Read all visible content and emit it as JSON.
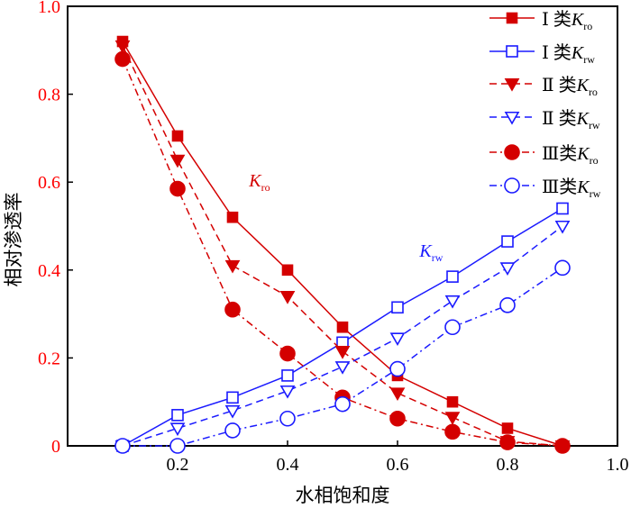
{
  "chart_data": {
    "type": "line",
    "title": "",
    "xlabel": "水相饱和度",
    "ylabel": "相对渗透率",
    "xlim": [
      0,
      1.0
    ],
    "ylim": [
      0,
      1.0
    ],
    "xticks": [
      "0.2",
      "0.4",
      "0.6",
      "0.8",
      "1.0"
    ],
    "xtick_values": [
      0.2,
      0.4,
      0.6,
      0.8,
      1.0
    ],
    "yticks": [
      "0",
      "0.2",
      "0.4",
      "0.6",
      "0.8",
      "1.0"
    ],
    "ytick_values": [
      0,
      0.2,
      0.4,
      0.6,
      0.8,
      1.0
    ],
    "ytick_color": "#ff0000",
    "grid": false,
    "legend_position": "top-right",
    "x": [
      0.1,
      0.2,
      0.3,
      0.4,
      0.5,
      0.6,
      0.7,
      0.8,
      0.9
    ],
    "series": [
      {
        "name": "Ⅰ 类K_ro",
        "prefix": "Ⅰ 类",
        "k": "K",
        "sub": "ro",
        "color": "#d40000",
        "dash": "solid",
        "marker": "square-filled",
        "values": [
          0.92,
          0.705,
          0.52,
          0.4,
          0.27,
          0.16,
          0.1,
          0.04,
          0.0
        ]
      },
      {
        "name": "Ⅰ 类K_rw",
        "prefix": "Ⅰ 类",
        "k": "K",
        "sub": "rw",
        "color": "#1a1aff",
        "dash": "solid",
        "marker": "square-open",
        "values": [
          0.0,
          0.07,
          0.11,
          0.16,
          0.235,
          0.315,
          0.385,
          0.465,
          0.54
        ]
      },
      {
        "name": "Ⅱ 类K_ro",
        "prefix": "Ⅱ 类",
        "k": "K",
        "sub": "ro",
        "color": "#d40000",
        "dash": "dash",
        "marker": "triangle-down-filled",
        "values": [
          0.91,
          0.65,
          0.41,
          0.34,
          0.215,
          0.12,
          0.065,
          0.01,
          0.0
        ]
      },
      {
        "name": "Ⅱ 类K_rw",
        "prefix": "Ⅱ 类",
        "k": "K",
        "sub": "rw",
        "color": "#1a1aff",
        "dash": "dash",
        "marker": "triangle-down-open",
        "values": [
          0.0,
          0.04,
          0.08,
          0.125,
          0.18,
          0.245,
          0.33,
          0.405,
          0.5
        ]
      },
      {
        "name": "Ⅲ类K_ro",
        "prefix": "Ⅲ类",
        "k": "K",
        "sub": "ro",
        "color": "#d40000",
        "dash": "dashdot",
        "marker": "circle-filled",
        "values": [
          0.88,
          0.585,
          0.31,
          0.21,
          0.11,
          0.062,
          0.032,
          0.008,
          0.0
        ]
      },
      {
        "name": "Ⅲ类K_rw",
        "prefix": "Ⅲ类",
        "k": "K",
        "sub": "rw",
        "color": "#1a1aff",
        "dash": "dashdot",
        "marker": "circle-open",
        "values": [
          0.0,
          0.0,
          0.035,
          0.062,
          0.095,
          0.175,
          0.27,
          0.32,
          0.405
        ]
      }
    ],
    "annotations": [
      {
        "k": "K",
        "sub": "ro",
        "color": "#d40000",
        "at": [
          0.33,
          0.59
        ]
      },
      {
        "k": "K",
        "sub": "rw",
        "color": "#1a1aff",
        "at": [
          0.64,
          0.43
        ]
      }
    ]
  }
}
